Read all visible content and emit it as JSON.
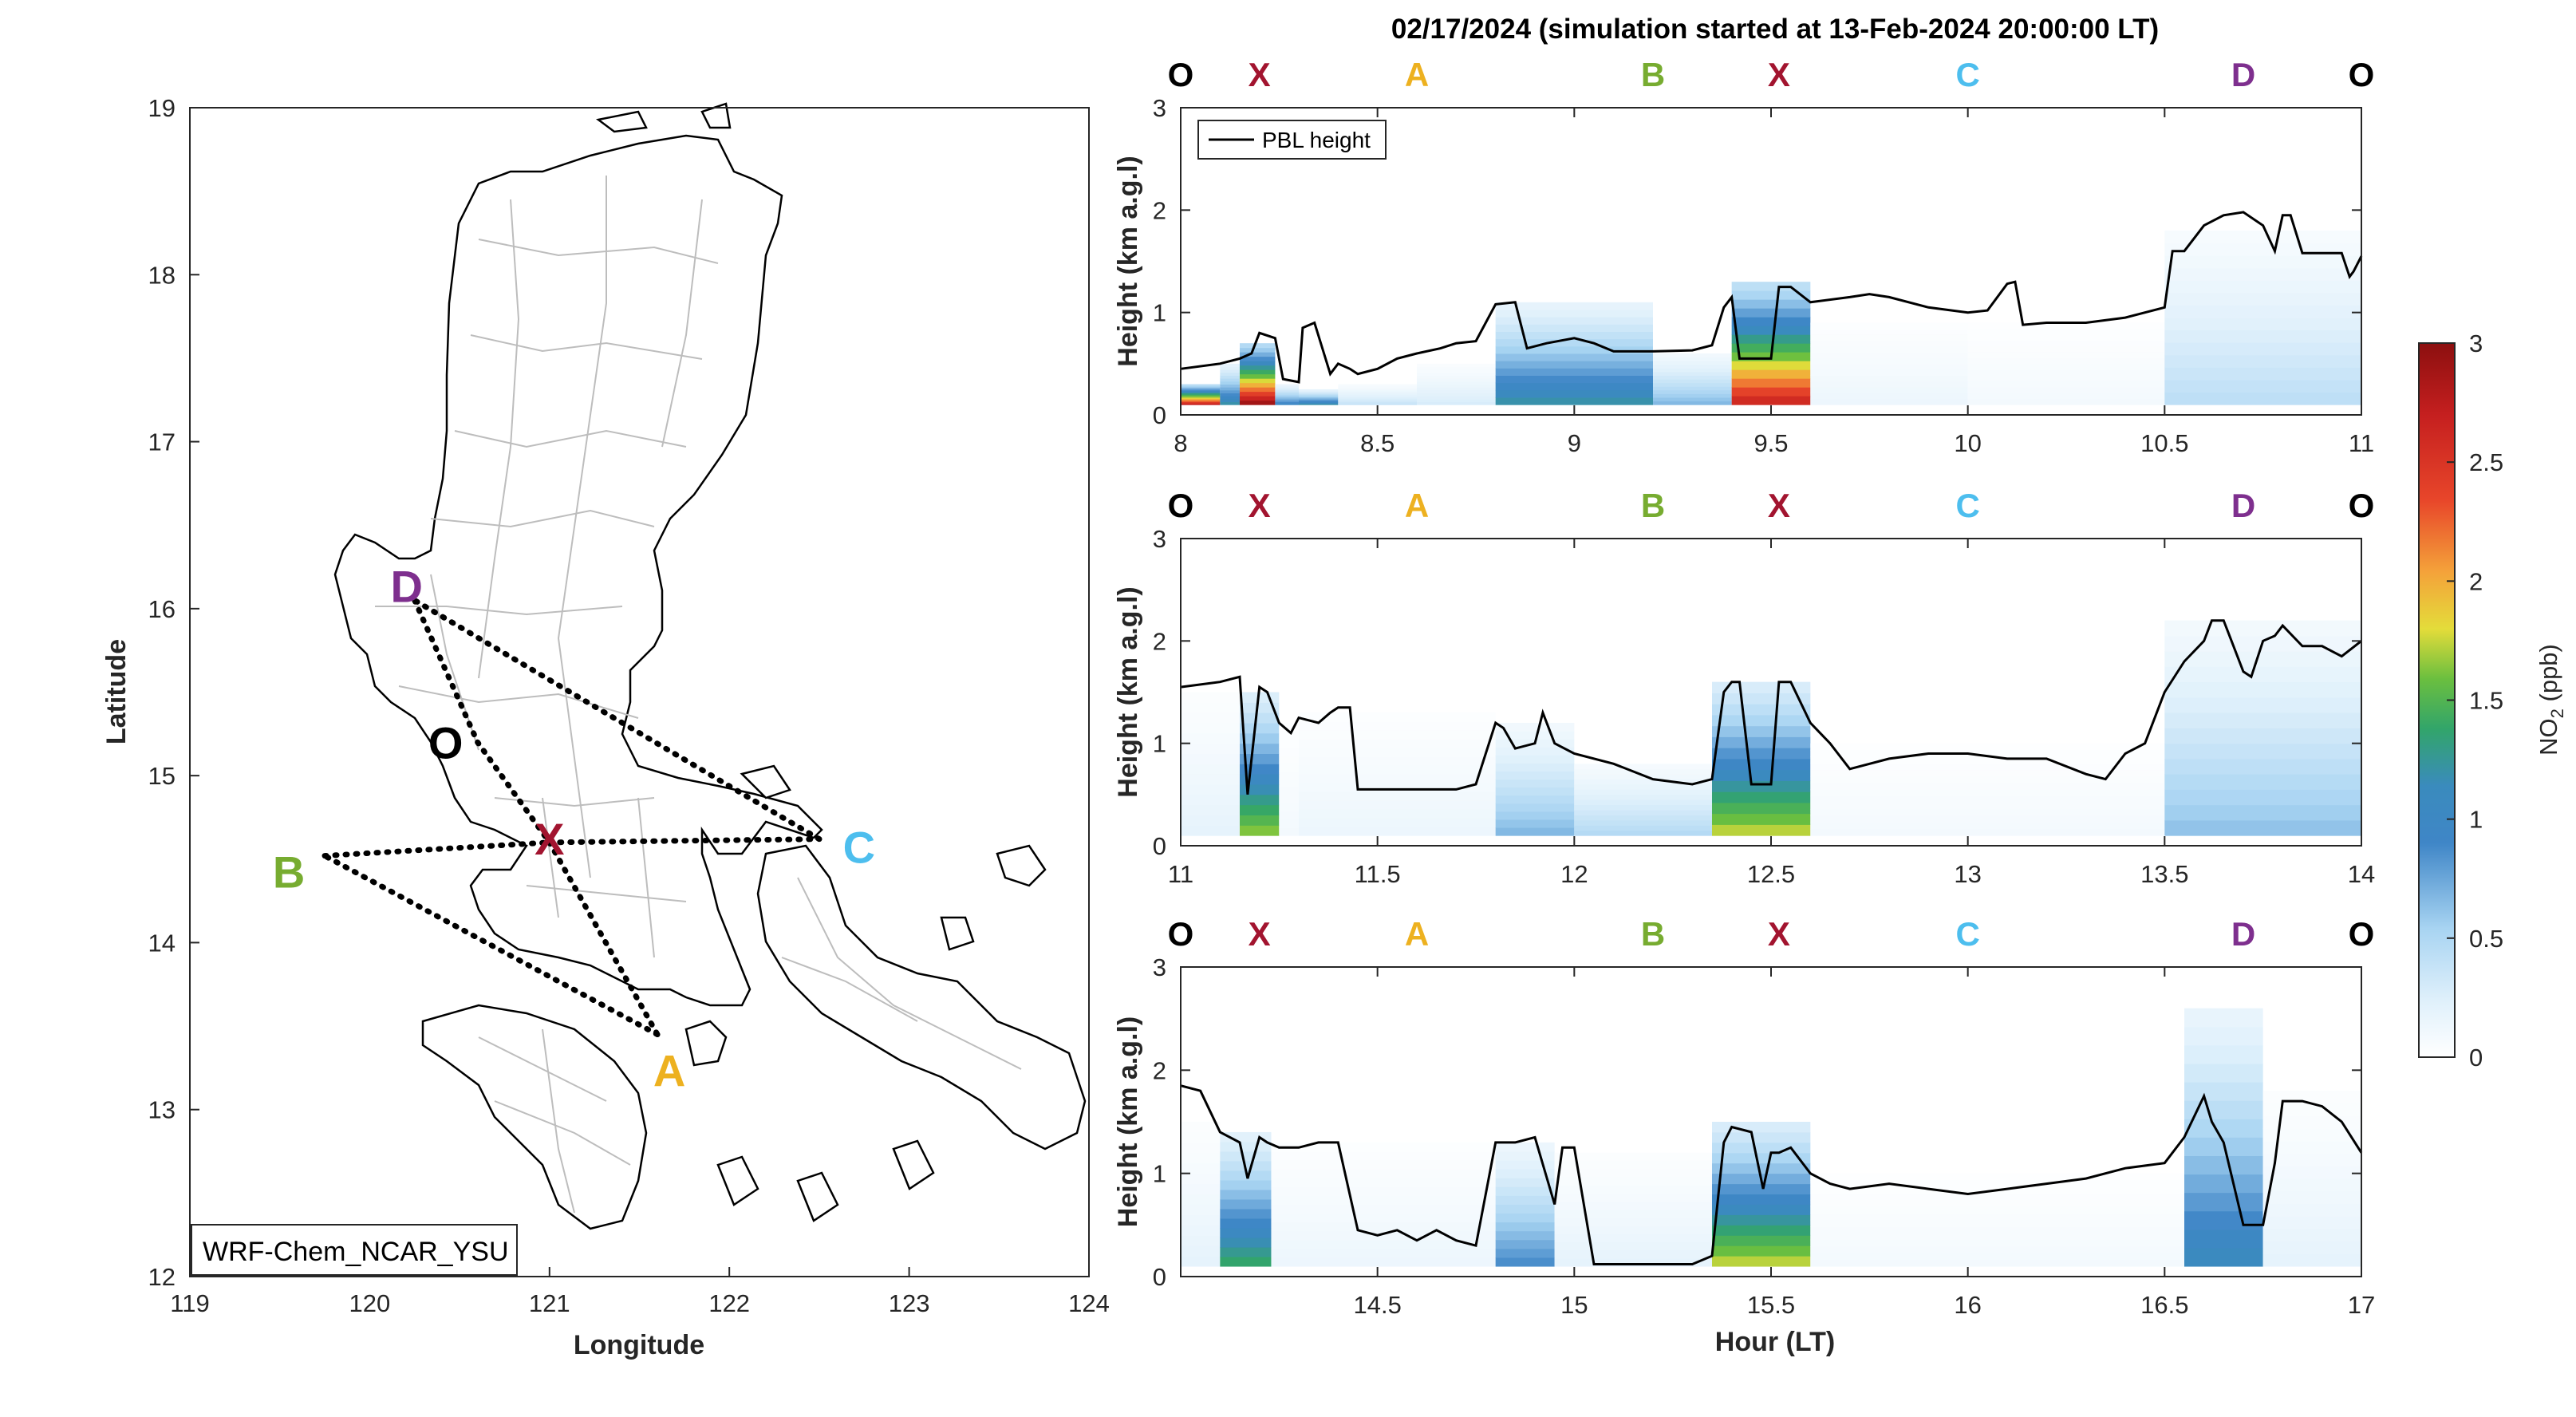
{
  "title": "02/17/2024 (simulation started at 13-Feb-2024 20:00:00 LT)",
  "colors": {
    "O": "#000000",
    "X": "#A2142F",
    "A": "#EDB120",
    "B": "#77AC30",
    "C": "#4DBEEE",
    "D": "#7E2F8E"
  },
  "chart_data": [
    {
      "type": "map",
      "xlabel": "Longitude",
      "ylabel": "Latitude",
      "xlim": [
        119,
        124
      ],
      "ylim": [
        12,
        19
      ],
      "xticks": [
        "119",
        "120",
        "121",
        "122",
        "123",
        "124"
      ],
      "yticks": [
        "12",
        "13",
        "14",
        "15",
        "16",
        "17",
        "18",
        "19"
      ],
      "annotation": "WRF-Chem_NCAR_YSU",
      "points": [
        {
          "label": "D",
          "lon": 120.25,
          "lat": 16.05
        },
        {
          "label": "O",
          "lon": 120.6,
          "lat": 15.2
        },
        {
          "label": "X",
          "lon": 121.0,
          "lat": 14.6
        },
        {
          "label": "C",
          "lon": 122.5,
          "lat": 14.62
        },
        {
          "label": "B",
          "lon": 119.75,
          "lat": 14.52
        },
        {
          "label": "A",
          "lon": 121.6,
          "lat": 13.45
        }
      ],
      "route": [
        "O",
        "X",
        "A",
        "B",
        "X",
        "C",
        "D",
        "O"
      ]
    },
    {
      "type": "heatmap",
      "ylabel": "Height (km a.g.l)",
      "xlim": [
        8,
        11
      ],
      "ylim": [
        0,
        3
      ],
      "xticks": [
        "8",
        "8.5",
        "9",
        "9.5",
        "10",
        "10.5",
        "11"
      ],
      "yticks": [
        "0",
        "1",
        "2",
        "3"
      ],
      "legend": "PBL height",
      "stop_labels": [
        "O",
        "X",
        "A",
        "B",
        "X",
        "C",
        "D",
        "O"
      ],
      "stop_hours": [
        8.0,
        8.2,
        8.6,
        9.2,
        9.52,
        10.0,
        10.7,
        11.0
      ],
      "pbl_x": [
        8.0,
        8.1,
        8.15,
        8.18,
        8.2,
        8.24,
        8.26,
        8.3,
        8.31,
        8.34,
        8.38,
        8.4,
        8.43,
        8.45,
        8.5,
        8.55,
        8.6,
        8.66,
        8.7,
        8.75,
        8.8,
        8.85,
        8.88,
        8.93,
        9.0,
        9.05,
        9.1,
        9.2,
        9.3,
        9.35,
        9.38,
        9.4,
        9.42,
        9.45,
        9.5,
        9.52,
        9.55,
        9.6,
        9.7,
        9.75,
        9.8,
        9.9,
        10.0,
        10.05,
        10.1,
        10.12,
        10.14,
        10.2,
        10.3,
        10.4,
        10.5,
        10.52,
        10.55,
        10.6,
        10.65,
        10.7,
        10.75,
        10.78,
        10.8,
        10.82,
        10.85,
        10.9,
        10.95,
        10.97,
        10.98,
        11.0
      ],
      "pbl_y": [
        0.45,
        0.5,
        0.55,
        0.6,
        0.8,
        0.75,
        0.35,
        0.32,
        0.85,
        0.9,
        0.4,
        0.5,
        0.45,
        0.4,
        0.45,
        0.55,
        0.6,
        0.65,
        0.7,
        0.72,
        1.08,
        1.1,
        0.65,
        0.7,
        0.75,
        0.7,
        0.62,
        0.62,
        0.63,
        0.68,
        1.05,
        1.15,
        0.55,
        0.55,
        0.55,
        1.25,
        1.25,
        1.1,
        1.15,
        1.18,
        1.15,
        1.05,
        1.0,
        1.02,
        1.28,
        1.3,
        0.88,
        0.9,
        0.9,
        0.95,
        1.05,
        1.6,
        1.6,
        1.85,
        1.95,
        1.98,
        1.85,
        1.6,
        1.95,
        1.95,
        1.58,
        1.58,
        1.58,
        1.35,
        1.4,
        1.55
      ],
      "pbl_color": "#000000",
      "no2": [
        {
          "x0": 8.0,
          "x1": 8.1,
          "h": 0.3,
          "peak": 2.8
        },
        {
          "x0": 8.1,
          "x1": 8.15,
          "h": 0.5,
          "peak": 1.2
        },
        {
          "x0": 8.15,
          "x1": 8.24,
          "h": 0.7,
          "peak": 3.0
        },
        {
          "x0": 8.24,
          "x1": 8.3,
          "h": 0.3,
          "peak": 1.0
        },
        {
          "x0": 8.3,
          "x1": 8.4,
          "h": 0.25,
          "peak": 1.2
        },
        {
          "x0": 8.4,
          "x1": 8.6,
          "h": 0.3,
          "peak": 0.4
        },
        {
          "x0": 8.6,
          "x1": 8.8,
          "h": 0.5,
          "peak": 0.3
        },
        {
          "x0": 8.8,
          "x1": 9.2,
          "h": 1.1,
          "peak": 1.2
        },
        {
          "x0": 9.2,
          "x1": 9.4,
          "h": 0.6,
          "peak": 0.7
        },
        {
          "x0": 9.4,
          "x1": 9.6,
          "h": 1.3,
          "peak": 2.7
        },
        {
          "x0": 9.6,
          "x1": 10.0,
          "h": 0.9,
          "peak": 0.15
        },
        {
          "x0": 10.0,
          "x1": 10.5,
          "h": 0.9,
          "peak": 0.1
        },
        {
          "x0": 10.5,
          "x1": 11.0,
          "h": 1.8,
          "peak": 0.45
        }
      ]
    },
    {
      "type": "heatmap",
      "ylabel": "Height (km a.g.l)",
      "xlim": [
        11,
        14
      ],
      "ylim": [
        0,
        3
      ],
      "xticks": [
        "11",
        "11.5",
        "12",
        "12.5",
        "13",
        "13.5",
        "14"
      ],
      "yticks": [
        "0",
        "1",
        "2",
        "3"
      ],
      "stop_labels": [
        "O",
        "X",
        "A",
        "B",
        "X",
        "C",
        "D",
        "O"
      ],
      "stop_hours": [
        11.0,
        11.2,
        11.6,
        12.2,
        12.52,
        13.0,
        13.7,
        14.0
      ],
      "pbl_x": [
        11.0,
        11.1,
        11.15,
        11.17,
        11.2,
        11.22,
        11.25,
        11.28,
        11.3,
        11.35,
        11.38,
        11.4,
        11.43,
        11.45,
        11.5,
        11.55,
        11.6,
        11.7,
        11.75,
        11.8,
        11.82,
        11.85,
        11.9,
        11.92,
        11.95,
        12.0,
        12.1,
        12.2,
        12.3,
        12.35,
        12.38,
        12.4,
        12.42,
        12.45,
        12.5,
        12.52,
        12.55,
        12.6,
        12.65,
        12.7,
        12.8,
        12.9,
        13.0,
        13.1,
        13.2,
        13.3,
        13.35,
        13.4,
        13.45,
        13.5,
        13.55,
        13.6,
        13.62,
        13.65,
        13.7,
        13.72,
        13.75,
        13.78,
        13.8,
        13.85,
        13.9,
        13.95,
        14.0
      ],
      "pbl_y": [
        1.55,
        1.6,
        1.65,
        0.5,
        1.55,
        1.5,
        1.2,
        1.1,
        1.25,
        1.2,
        1.3,
        1.35,
        1.35,
        0.55,
        0.55,
        0.55,
        0.55,
        0.55,
        0.6,
        1.2,
        1.15,
        0.95,
        1.0,
        1.3,
        1.0,
        0.9,
        0.8,
        0.65,
        0.6,
        0.65,
        1.5,
        1.6,
        1.6,
        0.6,
        0.6,
        1.6,
        1.6,
        1.2,
        1.0,
        0.75,
        0.85,
        0.9,
        0.9,
        0.85,
        0.85,
        0.7,
        0.65,
        0.9,
        1.0,
        1.5,
        1.8,
        2.0,
        2.2,
        2.2,
        1.7,
        1.65,
        2.0,
        2.05,
        2.15,
        1.95,
        1.95,
        1.85,
        2.0
      ],
      "pbl_color": "#000000",
      "no2": [
        {
          "x0": 11.0,
          "x1": 11.15,
          "h": 1.5,
          "peak": 0.2
        },
        {
          "x0": 11.15,
          "x1": 11.25,
          "h": 1.5,
          "peak": 1.7
        },
        {
          "x0": 11.25,
          "x1": 11.3,
          "h": 1.2,
          "peak": 0.1
        },
        {
          "x0": 11.3,
          "x1": 11.8,
          "h": 1.3,
          "peak": 0.15
        },
        {
          "x0": 11.8,
          "x1": 12.0,
          "h": 1.2,
          "peak": 0.7
        },
        {
          "x0": 12.0,
          "x1": 12.35,
          "h": 0.8,
          "peak": 0.5
        },
        {
          "x0": 12.35,
          "x1": 12.6,
          "h": 1.6,
          "peak": 1.8
        },
        {
          "x0": 12.6,
          "x1": 13.5,
          "h": 1.0,
          "peak": 0.1
        },
        {
          "x0": 13.5,
          "x1": 14.0,
          "h": 2.2,
          "peak": 0.65
        }
      ]
    },
    {
      "type": "heatmap",
      "xlabel": "Hour (LT)",
      "ylabel": "Height (km a.g.l)",
      "xlim": [
        14,
        17
      ],
      "ylim": [
        0,
        3
      ],
      "xticks": [
        "14.5",
        "15",
        "15.5",
        "16",
        "16.5",
        "17"
      ],
      "yticks": [
        "0",
        "1",
        "2",
        "3"
      ],
      "stop_labels": [
        "O",
        "X",
        "A",
        "B",
        "X",
        "C",
        "D",
        "O"
      ],
      "stop_hours": [
        14.0,
        14.2,
        14.6,
        15.2,
        15.52,
        16.0,
        16.7,
        17.0
      ],
      "pbl_x": [
        14.0,
        14.05,
        14.1,
        14.15,
        14.17,
        14.2,
        14.22,
        14.25,
        14.3,
        14.35,
        14.4,
        14.45,
        14.5,
        14.55,
        14.6,
        14.65,
        14.7,
        14.75,
        14.8,
        14.85,
        14.9,
        14.95,
        14.97,
        15.0,
        15.05,
        15.1,
        15.2,
        15.3,
        15.35,
        15.38,
        15.4,
        15.45,
        15.48,
        15.5,
        15.52,
        15.55,
        15.6,
        15.65,
        15.7,
        15.8,
        15.9,
        16.0,
        16.1,
        16.2,
        16.3,
        16.4,
        16.5,
        16.55,
        16.6,
        16.62,
        16.65,
        16.7,
        16.72,
        16.75,
        16.78,
        16.8,
        16.85,
        16.9,
        16.95,
        17.0
      ],
      "pbl_y": [
        1.85,
        1.8,
        1.4,
        1.3,
        0.95,
        1.35,
        1.3,
        1.25,
        1.25,
        1.3,
        1.3,
        0.45,
        0.4,
        0.45,
        0.35,
        0.45,
        0.35,
        0.3,
        1.3,
        1.3,
        1.35,
        0.7,
        1.25,
        1.25,
        0.12,
        0.12,
        0.12,
        0.12,
        0.2,
        1.3,
        1.45,
        1.4,
        0.85,
        1.2,
        1.2,
        1.25,
        1.0,
        0.9,
        0.85,
        0.9,
        0.85,
        0.8,
        0.85,
        0.9,
        0.95,
        1.05,
        1.1,
        1.35,
        1.75,
        1.5,
        1.3,
        0.5,
        0.5,
        0.5,
        1.1,
        1.7,
        1.7,
        1.65,
        1.5,
        1.2
      ],
      "pbl_color": "#000000",
      "no2": [
        {
          "x0": 14.0,
          "x1": 14.1,
          "h": 1.5,
          "peak": 0.2
        },
        {
          "x0": 14.1,
          "x1": 14.23,
          "h": 1.4,
          "peak": 1.4
        },
        {
          "x0": 14.23,
          "x1": 14.8,
          "h": 1.3,
          "peak": 0.15
        },
        {
          "x0": 14.8,
          "x1": 14.95,
          "h": 1.3,
          "peak": 0.9
        },
        {
          "x0": 14.95,
          "x1": 15.35,
          "h": 1.2,
          "peak": 0.2
        },
        {
          "x0": 15.35,
          "x1": 15.6,
          "h": 1.5,
          "peak": 1.8
        },
        {
          "x0": 15.6,
          "x1": 16.55,
          "h": 1.0,
          "peak": 0.1
        },
        {
          "x0": 16.55,
          "x1": 16.75,
          "h": 2.6,
          "peak": 1.1
        },
        {
          "x0": 16.75,
          "x1": 17.0,
          "h": 1.8,
          "peak": 0.2
        }
      ]
    },
    {
      "type": "colorbar",
      "label": "NO2 (ppb)",
      "label_main": "NO",
      "label_sub": "2",
      "label_unit": " (ppb)",
      "range": [
        0,
        3
      ],
      "ticks": [
        "0",
        "0.5",
        "1",
        "1.5",
        "2",
        "2.5",
        "3"
      ]
    }
  ]
}
